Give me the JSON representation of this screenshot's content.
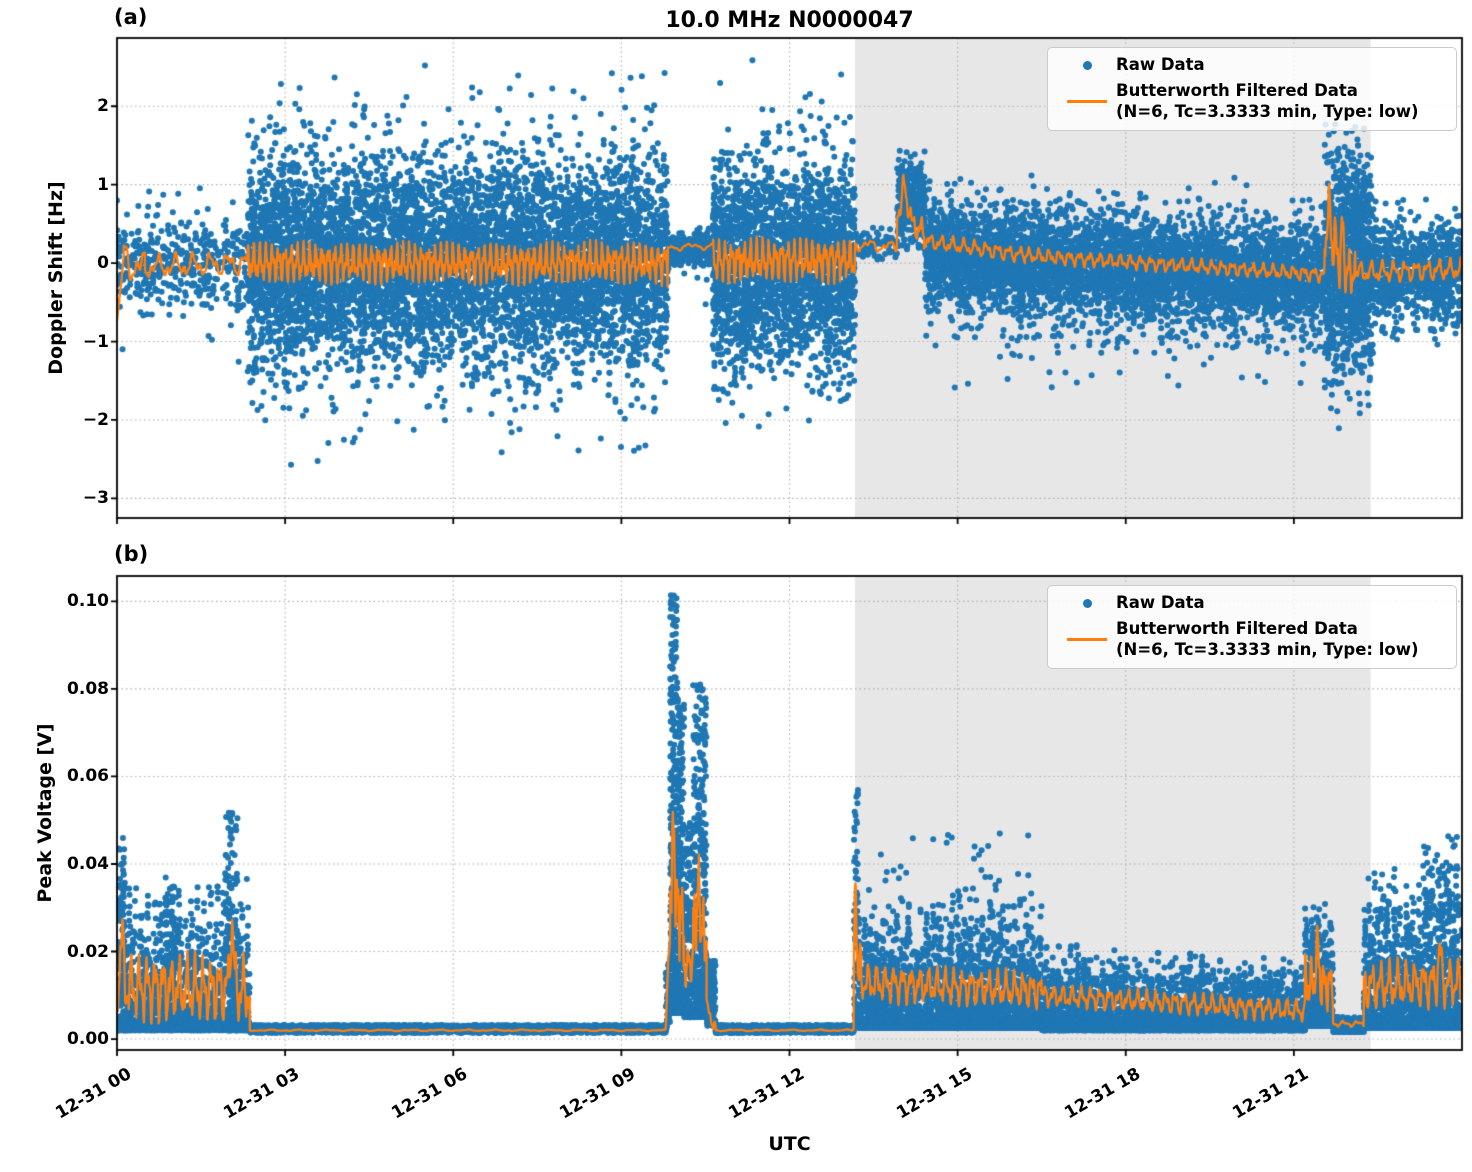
{
  "title": "10.0 MHz N0000047",
  "xlabel": "UTC",
  "colors": {
    "raw": "#1f77b4",
    "filtered": "#ff7f0e",
    "shade": "#e7e7e8",
    "grid": "#b0b0b0",
    "axis": "#000000",
    "background": "#ffffff"
  },
  "legend": {
    "raw_label": "Raw Data",
    "filtered_label": "Butterworth Filtered Data",
    "filtered_sublabel": "(N=6, Tc=3.3333 min, Type: low)"
  },
  "x_axis": {
    "range_hours": [
      0,
      24
    ],
    "ticks": [
      {
        "hour": 0,
        "label": "12-31 00"
      },
      {
        "hour": 3,
        "label": "12-31 03"
      },
      {
        "hour": 6,
        "label": "12-31 06"
      },
      {
        "hour": 9,
        "label": "12-31 09"
      },
      {
        "hour": 12,
        "label": "12-31 12"
      },
      {
        "hour": 15,
        "label": "12-31 15"
      },
      {
        "hour": 18,
        "label": "12-31 18"
      },
      {
        "hour": 21,
        "label": "12-31 21"
      }
    ]
  },
  "shaded_region_hours": [
    13.17,
    22.37
  ],
  "chart_data": [
    {
      "type": "scatter",
      "panel_label": "(a)",
      "ylabel": "Doppler Shift [Hz]",
      "ylim": [
        -3.25,
        2.87
      ],
      "yticks": [
        {
          "v": 2,
          "label": "2"
        },
        {
          "v": 1,
          "label": "1"
        },
        {
          "v": 0,
          "label": "0"
        },
        {
          "v": -1,
          "label": "−1"
        },
        {
          "v": -2,
          "label": "−2"
        },
        {
          "v": -3,
          "label": "−3"
        }
      ],
      "raw": {
        "dist": "gauss",
        "segments": [
          {
            "t0": 0.0,
            "t1": 2.33,
            "n": 420,
            "mean": 0,
            "sd": 0.28,
            "tf": 0.1,
            "tsd": 0.55,
            "clip": [
              -1.45,
              1.08
            ]
          },
          {
            "t0": 2.33,
            "t1": 9.83,
            "n": 6800,
            "mean": 0,
            "sd": 0.62,
            "tf": 0.13,
            "tsd": 1.0,
            "clip": [
              -2.45,
              2.45
            ]
          },
          {
            "t0": 2.33,
            "t1": 9.83,
            "n": 70,
            "mean": 0,
            "sd": 1.4,
            "clip": [
              -2.95,
              2.65
            ]
          },
          {
            "t0": 9.83,
            "t1": 10.63,
            "n": 280,
            "mean": 0.16,
            "sd": 0.1,
            "tf": 0.05,
            "tsd": 0.45,
            "clip": [
              -0.95,
              0.6
            ]
          },
          {
            "t0": 10.63,
            "t1": 13.17,
            "n": 2500,
            "mean": 0,
            "sd": 0.62,
            "tf": 0.13,
            "tsd": 1.0,
            "clip": [
              -2.45,
              2.45
            ]
          },
          {
            "t0": 10.63,
            "t1": 13.17,
            "n": 28,
            "mean": 0,
            "sd": 1.4,
            "clip": [
              -2.8,
              2.65
            ]
          },
          {
            "t0": 13.17,
            "t1": 13.92,
            "n": 70,
            "mean": 0.25,
            "sd": 0.1,
            "clip": [
              -0.2,
              0.75
            ]
          },
          {
            "t0": 13.92,
            "t1": 14.42,
            "n": 300,
            "mean": 0.8,
            "sd": 0.3,
            "clip": [
              0.15,
              1.5
            ]
          },
          {
            "t0": 14.42,
            "t1": 21.55,
            "n": 5200,
            "mean": 0.1,
            "mean1": -0.18,
            "sd": 0.3,
            "tf": 0.16,
            "tsd": 0.55,
            "tbias": -0.15,
            "clip": [
              -1.6,
              1.15
            ]
          },
          {
            "t0": 21.55,
            "t1": 22.4,
            "n": 1100,
            "mean": 0.0,
            "sd": 0.7,
            "tf": 0.12,
            "tsd": 1.05,
            "clip": [
              -2.55,
              1.78
            ]
          },
          {
            "t0": 22.4,
            "t1": 24.0,
            "n": 900,
            "mean": -0.12,
            "sd": 0.3,
            "tf": 0.12,
            "tsd": 0.5,
            "clip": [
              -1.15,
              0.95
            ]
          }
        ]
      },
      "filtered": {
        "segments": [
          {
            "t0": 0.0,
            "t1": 0.12,
            "m0": -0.72,
            "m1": 0.05,
            "amp": 0.04,
            "f": 3
          },
          {
            "t0": 0.12,
            "t1": 0.5,
            "m0": 0.05,
            "m1": -0.05,
            "amp": 0.3,
            "f": 2.6
          },
          {
            "t0": 0.5,
            "t1": 2.33,
            "m0": -0.05,
            "m1": 0.0,
            "amp": 0.18,
            "f": 3.2
          },
          {
            "t0": 2.33,
            "t1": 9.83,
            "m0": 0.0,
            "m1": 0.0,
            "amp": 0.3,
            "f": 9
          },
          {
            "t0": 9.83,
            "t1": 10.63,
            "m0": 0.2,
            "m1": 0.22,
            "amp": 0.05,
            "f": 2.2
          },
          {
            "t0": 10.63,
            "t1": 13.17,
            "m0": 0.02,
            "m1": 0.05,
            "amp": 0.32,
            "f": 9
          },
          {
            "t0": 13.17,
            "t1": 13.92,
            "m0": 0.24,
            "m1": 0.2,
            "amp": 0.09,
            "f": 2.8
          },
          {
            "t0": 13.92,
            "t1": 14.4,
            "m0": 0.5,
            "m1": 0.42,
            "amp": 0.18,
            "f": 7
          },
          {
            "t0": 14.4,
            "t1": 16.2,
            "m0": 0.28,
            "m1": 0.1,
            "amp": 0.12,
            "f": 5
          },
          {
            "t0": 16.2,
            "t1": 21.55,
            "m0": 0.1,
            "m1": -0.15,
            "amp": 0.11,
            "f": 5.5
          },
          {
            "t0": 21.55,
            "t1": 22.1,
            "m0": 0.05,
            "m1": -0.15,
            "amp": 0.35,
            "f": 9
          },
          {
            "t0": 22.1,
            "t1": 24.0,
            "m0": -0.12,
            "m1": -0.08,
            "amp": 0.16,
            "f": 5
          }
        ],
        "spikes": [
          {
            "t": 14.03,
            "w": 0.06,
            "p": 0.55
          },
          {
            "t": 14.14,
            "w": 0.04,
            "p": 0.25
          },
          {
            "t": 21.62,
            "w": 0.04,
            "p": 0.85
          },
          {
            "t": 21.73,
            "w": 0.028,
            "p": 0.5
          },
          {
            "t": 21.86,
            "w": 0.03,
            "p": 0.55
          }
        ]
      }
    },
    {
      "type": "scatter",
      "panel_label": "(b)",
      "ylabel": "Peak Voltage [V]",
      "ylim": [
        -0.0025,
        0.1058
      ],
      "yticks": [
        {
          "v": 0.1,
          "label": "0.10"
        },
        {
          "v": 0.08,
          "label": "0.08"
        },
        {
          "v": 0.06,
          "label": "0.06"
        },
        {
          "v": 0.04,
          "label": "0.04"
        },
        {
          "v": 0.02,
          "label": "0.02"
        },
        {
          "v": 0.0,
          "label": "0.00"
        }
      ],
      "raw": {
        "dist": "power",
        "segments": [
          {
            "t0": 0.0,
            "t1": 2.37,
            "n": 1700,
            "lo": 0.002,
            "hi": 0.037,
            "k": 2.6,
            "env": 1
          },
          {
            "t0": 0.03,
            "t1": 0.14,
            "n": 90,
            "lo": 0.008,
            "hi": 0.046,
            "k": 1.6
          },
          {
            "t0": 0.85,
            "t1": 1.05,
            "n": 80,
            "lo": 0.008,
            "hi": 0.037,
            "k": 1.6
          },
          {
            "t0": 1.93,
            "t1": 2.15,
            "n": 100,
            "lo": 0.01,
            "hi": 0.053,
            "k": 1.6
          },
          {
            "t0": 2.37,
            "t1": 9.79,
            "n": 2400,
            "lo": 0.0014,
            "hi": 0.0032,
            "k": 1
          },
          {
            "t0": 9.79,
            "t1": 9.87,
            "n": 50,
            "lo": 0.002,
            "hi": 0.018,
            "k": 1.3
          },
          {
            "t0": 9.87,
            "t1": 10.0,
            "n": 380,
            "lo": 0.006,
            "hi": 0.102,
            "k": 2.1
          },
          {
            "t0": 10.0,
            "t1": 10.12,
            "n": 300,
            "lo": 0.006,
            "hi": 0.078,
            "k": 2.1
          },
          {
            "t0": 10.12,
            "t1": 10.28,
            "n": 160,
            "lo": 0.005,
            "hi": 0.05,
            "k": 1.9
          },
          {
            "t0": 10.28,
            "t1": 10.52,
            "n": 380,
            "lo": 0.005,
            "hi": 0.081,
            "k": 2.0
          },
          {
            "t0": 10.52,
            "t1": 10.68,
            "n": 130,
            "lo": 0.003,
            "hi": 0.018,
            "k": 1.6
          },
          {
            "t0": 10.68,
            "t1": 13.15,
            "n": 1000,
            "lo": 0.0014,
            "hi": 0.0032,
            "k": 1
          },
          {
            "t0": 13.15,
            "t1": 13.23,
            "n": 70,
            "lo": 0.004,
            "hi": 0.057,
            "k": 1.3
          },
          {
            "t0": 13.23,
            "t1": 16.5,
            "n": 3000,
            "lo": 0.0025,
            "hi": 0.032,
            "k": 2.7,
            "env": 1
          },
          {
            "t0": 13.23,
            "t1": 16.5,
            "n": 70,
            "lo": 0.025,
            "hi": 0.047,
            "k": 1.4
          },
          {
            "t0": 16.5,
            "t1": 21.2,
            "n": 3600,
            "lo": 0.002,
            "hi": 0.022,
            "hi1": 0.018,
            "k": 2.8,
            "env": 1
          },
          {
            "t0": 21.2,
            "t1": 21.7,
            "n": 500,
            "lo": 0.003,
            "hi": 0.032,
            "k": 2.2,
            "env": 1
          },
          {
            "t0": 21.7,
            "t1": 22.25,
            "n": 300,
            "lo": 0.0016,
            "hi": 0.005,
            "k": 1.6
          },
          {
            "t0": 22.25,
            "t1": 24.0,
            "n": 1700,
            "lo": 0.0025,
            "hi": 0.04,
            "k": 2.7,
            "env": 1
          },
          {
            "t0": 23.3,
            "t1": 23.95,
            "n": 70,
            "lo": 0.028,
            "hi": 0.047,
            "k": 1.4
          }
        ]
      },
      "filtered": {
        "clip_lo": 0.0018,
        "segments": [
          {
            "t0": 0.0,
            "t1": 2.37,
            "m0": 0.012,
            "m1": 0.011,
            "amp": 0.009,
            "f": 7
          },
          {
            "t0": 2.37,
            "t1": 9.79,
            "m0": 0.002,
            "m1": 0.002,
            "amp": 0.0002,
            "f": 2
          },
          {
            "t0": 9.79,
            "t1": 9.87,
            "m0": 0.003,
            "m1": 0.025,
            "amp": 0.003,
            "f": 8
          },
          {
            "t0": 9.87,
            "t1": 10.12,
            "m0": 0.032,
            "m1": 0.027,
            "amp": 0.011,
            "f": 13
          },
          {
            "t0": 10.12,
            "t1": 10.28,
            "m0": 0.016,
            "m1": 0.018,
            "amp": 0.005,
            "f": 10
          },
          {
            "t0": 10.28,
            "t1": 10.52,
            "m0": 0.027,
            "m1": 0.024,
            "amp": 0.009,
            "f": 12
          },
          {
            "t0": 10.52,
            "t1": 10.68,
            "m0": 0.008,
            "m1": 0.002,
            "amp": 0.002,
            "f": 6
          },
          {
            "t0": 10.68,
            "t1": 13.15,
            "m0": 0.002,
            "m1": 0.002,
            "amp": 0.0002,
            "f": 2
          },
          {
            "t0": 13.15,
            "t1": 13.28,
            "m0": 0.02,
            "m1": 0.016,
            "amp": 0.007,
            "f": 10
          },
          {
            "t0": 13.28,
            "t1": 16.5,
            "m0": 0.013,
            "m1": 0.011,
            "amp": 0.005,
            "f": 6.5
          },
          {
            "t0": 16.5,
            "t1": 21.2,
            "m0": 0.01,
            "m1": 0.0065,
            "amp": 0.003,
            "f": 6
          },
          {
            "t0": 21.2,
            "t1": 21.7,
            "m0": 0.013,
            "m1": 0.012,
            "amp": 0.007,
            "f": 9
          },
          {
            "t0": 21.7,
            "t1": 22.25,
            "m0": 0.0035,
            "m1": 0.0035,
            "amp": 0.0008,
            "f": 4
          },
          {
            "t0": 22.25,
            "t1": 24.0,
            "m0": 0.012,
            "m1": 0.013,
            "amp": 0.0065,
            "f": 6.5
          }
        ],
        "spikes": [
          {
            "t": 0.08,
            "w": 0.04,
            "p": 0.012
          },
          {
            "t": 2.05,
            "w": 0.04,
            "p": 0.016
          },
          {
            "t": 9.93,
            "w": 0.035,
            "p": 0.016
          },
          {
            "t": 10.38,
            "w": 0.03,
            "p": 0.009
          },
          {
            "t": 13.18,
            "w": 0.02,
            "p": 0.013
          },
          {
            "t": 21.42,
            "w": 0.04,
            "p": 0.008
          },
          {
            "t": 23.6,
            "w": 0.04,
            "p": 0.007
          }
        ]
      }
    }
  ]
}
